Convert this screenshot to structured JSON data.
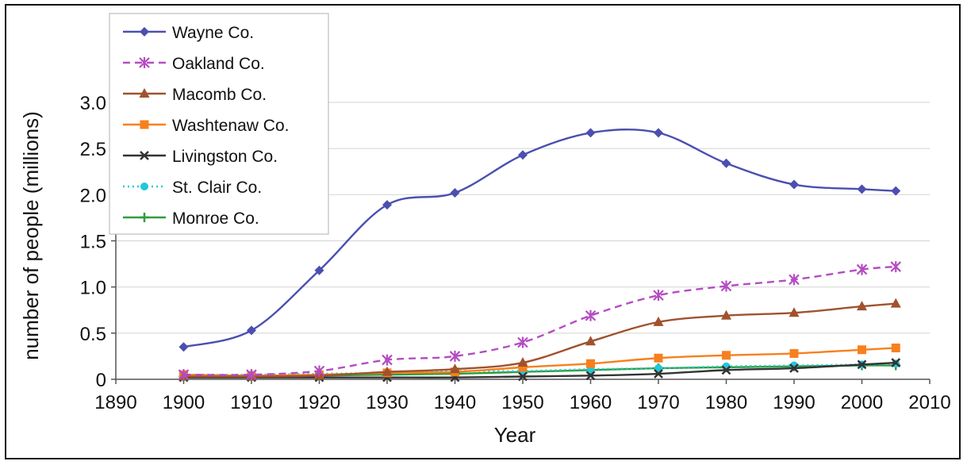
{
  "chart_data": {
    "type": "line",
    "title": "",
    "xlabel": "Year",
    "ylabel": "number of people (millions)",
    "xlim": [
      1890,
      2010
    ],
    "ylim": [
      0,
      3.0
    ],
    "x_ticks": [
      "1890",
      "1900",
      "1910",
      "1920",
      "1930",
      "1940",
      "1950",
      "1960",
      "1970",
      "1980",
      "1990",
      "2000",
      "2010"
    ],
    "x_tick_values": [
      1890,
      1900,
      1910,
      1920,
      1930,
      1940,
      1950,
      1960,
      1970,
      1980,
      1990,
      2000,
      2010
    ],
    "y_ticks": [
      "0",
      "0.5",
      "1.0",
      "1.5",
      "2.0",
      "2.5",
      "3.0"
    ],
    "y_tick_values": [
      0,
      0.5,
      1.0,
      1.5,
      2.0,
      2.5,
      3.0
    ],
    "grid": "horizontal",
    "legend_position": "top-left",
    "x": [
      1900,
      1910,
      1920,
      1930,
      1940,
      1950,
      1960,
      1970,
      1980,
      1990,
      2000,
      2005
    ],
    "series": [
      {
        "name": "Wayne Co.",
        "color": "#4B4FB0",
        "dash": "solid",
        "marker": "diamond",
        "values": [
          0.35,
          0.53,
          1.18,
          1.89,
          2.02,
          2.43,
          2.67,
          2.67,
          2.34,
          2.11,
          2.06,
          2.04
        ]
      },
      {
        "name": "Oakland Co.",
        "color": "#B54CC2",
        "dash": "dashed",
        "marker": "star",
        "values": [
          0.05,
          0.05,
          0.09,
          0.21,
          0.25,
          0.4,
          0.69,
          0.91,
          1.01,
          1.08,
          1.19,
          1.22
        ]
      },
      {
        "name": "Macomb Co.",
        "color": "#A0522D",
        "dash": "solid",
        "marker": "triangle",
        "values": [
          0.03,
          0.03,
          0.04,
          0.08,
          0.11,
          0.18,
          0.41,
          0.62,
          0.69,
          0.72,
          0.79,
          0.82
        ]
      },
      {
        "name": "Washtenaw Co.",
        "color": "#F7801E",
        "dash": "solid",
        "marker": "square",
        "values": [
          0.05,
          0.04,
          0.05,
          0.07,
          0.08,
          0.13,
          0.17,
          0.23,
          0.26,
          0.28,
          0.32,
          0.34
        ]
      },
      {
        "name": "Livingston Co.",
        "color": "#333333",
        "dash": "solid",
        "marker": "x",
        "values": [
          0.02,
          0.02,
          0.02,
          0.02,
          0.02,
          0.03,
          0.04,
          0.06,
          0.1,
          0.12,
          0.16,
          0.18
        ]
      },
      {
        "name": "St. Clair Co.",
        "color": "#22C8D8",
        "dash": "dotted",
        "marker": "circle",
        "values": [
          0.05,
          0.05,
          0.06,
          0.07,
          0.09,
          0.09,
          0.11,
          0.12,
          0.14,
          0.15,
          0.16,
          0.17
        ]
      },
      {
        "name": "Monroe Co.",
        "color": "#2E9E3E",
        "dash": "solid",
        "marker": "plus",
        "values": [
          0.03,
          0.03,
          0.04,
          0.05,
          0.06,
          0.08,
          0.1,
          0.12,
          0.13,
          0.14,
          0.15,
          0.15
        ]
      }
    ]
  }
}
